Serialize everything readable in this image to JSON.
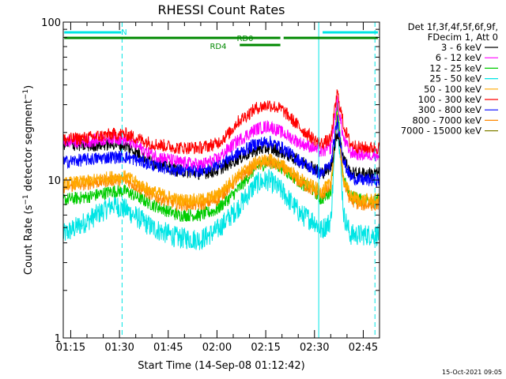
{
  "chart_data": {
    "type": "line",
    "title": "RHESSI Count Rates",
    "xlabel": "Start Time (14-Sep-08 01:12:42)",
    "ylabel": "Count Rate (s⁻¹ detector segment⁻¹)",
    "ylabel_parts": [
      "Count Rate (s",
      "−1",
      " detector segment",
      "−1",
      ")"
    ],
    "yscale": "log",
    "ylim": [
      1,
      100
    ],
    "y_ticks": [
      {
        "value": 1,
        "label": "1"
      },
      {
        "value": 10,
        "label": "10"
      },
      {
        "value": 100,
        "label": "100"
      }
    ],
    "xlim_minutes": [
      12.7,
      110.0
    ],
    "x_ticks": [
      {
        "minute": 15,
        "label": "01:15"
      },
      {
        "minute": 30,
        "label": "01:30"
      },
      {
        "minute": 45,
        "label": "01:45"
      },
      {
        "minute": 60,
        "label": "02:00"
      },
      {
        "minute": 75,
        "label": "02:15"
      },
      {
        "minute": 90,
        "label": "02:30"
      },
      {
        "minute": 105,
        "label": "02:45"
      }
    ],
    "legend": {
      "header": [
        "Det 1f,3f,4f,5f,6f,9f,",
        "FDecim 1, Att 0"
      ],
      "position": "top-right, outside plot"
    },
    "series": [
      {
        "name": "3 - 6 keV",
        "color": "#000000",
        "anchors": [
          [
            12.7,
            17
          ],
          [
            20,
            16.5
          ],
          [
            28,
            17
          ],
          [
            32,
            16.5
          ],
          [
            40,
            13
          ],
          [
            48,
            11.5
          ],
          [
            55,
            11
          ],
          [
            60,
            11.5
          ],
          [
            66,
            13.5
          ],
          [
            72,
            15.5
          ],
          [
            76,
            16
          ],
          [
            80,
            15
          ],
          [
            86,
            13
          ],
          [
            90,
            12
          ],
          [
            92,
            11
          ],
          [
            95,
            12
          ],
          [
            97,
            20
          ],
          [
            99,
            14
          ],
          [
            101,
            11
          ],
          [
            104,
            11
          ],
          [
            110,
            11
          ]
        ]
      },
      {
        "name": "6 - 12 keV",
        "color": "#ff00ff",
        "anchors": [
          [
            12.7,
            17.5
          ],
          [
            20,
            17.5
          ],
          [
            28,
            18.5
          ],
          [
            32,
            18
          ],
          [
            40,
            14.5
          ],
          [
            48,
            13
          ],
          [
            55,
            12.5
          ],
          [
            60,
            13.5
          ],
          [
            66,
            17.5
          ],
          [
            72,
            21
          ],
          [
            76,
            22
          ],
          [
            80,
            20
          ],
          [
            86,
            17
          ],
          [
            90,
            16
          ],
          [
            92,
            15
          ],
          [
            95,
            16
          ],
          [
            97,
            32
          ],
          [
            99,
            18
          ],
          [
            101,
            15
          ],
          [
            104,
            14.5
          ],
          [
            110,
            14.5
          ]
        ]
      },
      {
        "name": "12 - 25 keV",
        "color": "#00cc00",
        "anchors": [
          [
            12.7,
            7.5
          ],
          [
            20,
            7.8
          ],
          [
            28,
            8.5
          ],
          [
            32,
            8.5
          ],
          [
            40,
            7
          ],
          [
            48,
            6
          ],
          [
            55,
            6
          ],
          [
            60,
            6.5
          ],
          [
            66,
            8.5
          ],
          [
            72,
            12
          ],
          [
            76,
            13
          ],
          [
            80,
            12
          ],
          [
            86,
            9.5
          ],
          [
            90,
            8.5
          ],
          [
            92,
            7.5
          ],
          [
            95,
            8.5
          ],
          [
            97,
            29
          ],
          [
            99,
            10
          ],
          [
            101,
            8
          ],
          [
            104,
            7.5
          ],
          [
            110,
            7.5
          ]
        ]
      },
      {
        "name": "25 - 50 keV",
        "color": "#00e5e5",
        "anchors": [
          [
            12.7,
            4.5
          ],
          [
            20,
            5.5
          ],
          [
            28,
            7
          ],
          [
            32,
            6.5
          ],
          [
            40,
            5
          ],
          [
            48,
            4.3
          ],
          [
            55,
            4.2
          ],
          [
            60,
            4.8
          ],
          [
            66,
            6.5
          ],
          [
            72,
            9.5
          ],
          [
            76,
            10
          ],
          [
            80,
            8.5
          ],
          [
            86,
            6
          ],
          [
            90,
            5.5
          ],
          [
            92,
            4.8
          ],
          [
            95,
            5.5
          ],
          [
            97,
            28
          ],
          [
            99,
            6
          ],
          [
            101,
            4.5
          ],
          [
            104,
            4.5
          ],
          [
            110,
            4.5
          ]
        ]
      },
      {
        "name": "50 - 100 keV",
        "color": "#ffaa00",
        "anchors": [
          [
            12.7,
            9.5
          ],
          [
            20,
            9.8
          ],
          [
            28,
            10.5
          ],
          [
            32,
            10.5
          ],
          [
            40,
            8.5
          ],
          [
            48,
            7.5
          ],
          [
            55,
            7.5
          ],
          [
            60,
            8
          ],
          [
            66,
            10.5
          ],
          [
            72,
            13
          ],
          [
            76,
            13.5
          ],
          [
            80,
            12.5
          ],
          [
            86,
            10
          ],
          [
            90,
            9
          ],
          [
            92,
            8.5
          ],
          [
            95,
            9.5
          ],
          [
            97,
            25
          ],
          [
            99,
            10
          ],
          [
            101,
            8
          ],
          [
            104,
            7.5
          ],
          [
            110,
            7.5
          ]
        ]
      },
      {
        "name": "100 - 300 keV",
        "color": "#ff0000",
        "anchors": [
          [
            12.7,
            18
          ],
          [
            20,
            18.5
          ],
          [
            28,
            19.5
          ],
          [
            32,
            19.5
          ],
          [
            40,
            17
          ],
          [
            48,
            16
          ],
          [
            55,
            16
          ],
          [
            60,
            17
          ],
          [
            64,
            20
          ],
          [
            66,
            23
          ],
          [
            72,
            28.5
          ],
          [
            76,
            30
          ],
          [
            80,
            28
          ],
          [
            86,
            21
          ],
          [
            90,
            18
          ],
          [
            92,
            17
          ],
          [
            95,
            18
          ],
          [
            97,
            36
          ],
          [
            99,
            22
          ],
          [
            101,
            17
          ],
          [
            104,
            16
          ],
          [
            110,
            16
          ]
        ]
      },
      {
        "name": "300 - 800 keV",
        "color": "#0000ff",
        "anchors": [
          [
            12.7,
            13
          ],
          [
            20,
            13.5
          ],
          [
            28,
            14
          ],
          [
            32,
            14
          ],
          [
            40,
            12.5
          ],
          [
            48,
            11.5
          ],
          [
            55,
            11.5
          ],
          [
            60,
            12.5
          ],
          [
            66,
            14.5
          ],
          [
            72,
            17
          ],
          [
            76,
            17.5
          ],
          [
            80,
            16
          ],
          [
            86,
            13
          ],
          [
            90,
            11.5
          ],
          [
            92,
            11
          ],
          [
            95,
            12.5
          ],
          [
            97,
            24
          ],
          [
            99,
            13
          ],
          [
            101,
            10.5
          ],
          [
            104,
            10
          ],
          [
            110,
            10
          ]
        ]
      },
      {
        "name": "800 - 7000 keV",
        "color": "#ff8800",
        "anchors": [
          [
            12.7,
            9
          ],
          [
            20,
            9.5
          ],
          [
            28,
            10
          ],
          [
            32,
            10
          ],
          [
            40,
            8
          ],
          [
            48,
            7
          ],
          [
            55,
            7
          ],
          [
            60,
            7.5
          ],
          [
            66,
            10
          ],
          [
            72,
            12.5
          ],
          [
            76,
            13
          ],
          [
            80,
            12
          ],
          [
            86,
            9.5
          ],
          [
            90,
            8.5
          ],
          [
            92,
            8
          ],
          [
            95,
            9
          ],
          [
            97,
            24
          ],
          [
            99,
            9.5
          ],
          [
            101,
            7.5
          ],
          [
            104,
            7
          ],
          [
            110,
            7
          ]
        ]
      },
      {
        "name": "7000 - 15000 keV",
        "color": "#808000",
        "anchors": [
          [
            12.7,
            7
          ],
          [
            110,
            7
          ]
        ]
      }
    ],
    "annotations": {
      "bars": [
        {
          "label": "N",
          "color": "#00e5e5",
          "segments": [
            [
              13.0,
              30.5
            ],
            [
              92.5,
              109.5
            ]
          ]
        },
        {
          "label": "RD0",
          "color": "#008800",
          "segments": [
            [
              13.0,
              79.5
            ],
            [
              80.5,
              109.5
            ]
          ]
        },
        {
          "label": "RD4",
          "color": "#008800",
          "segments": [
            [
              67.0,
              79.5
            ]
          ]
        }
      ],
      "vertical_lines": [
        {
          "minute": 30.8,
          "color": "#00e5e5",
          "style": "dashed"
        },
        {
          "minute": 91.3,
          "color": "#00e5e5",
          "style": "solid"
        },
        {
          "minute": 108.6,
          "color": "#00e5e5",
          "style": "dashed"
        }
      ]
    },
    "timestamp": "15-Oct-2021 09:05"
  }
}
